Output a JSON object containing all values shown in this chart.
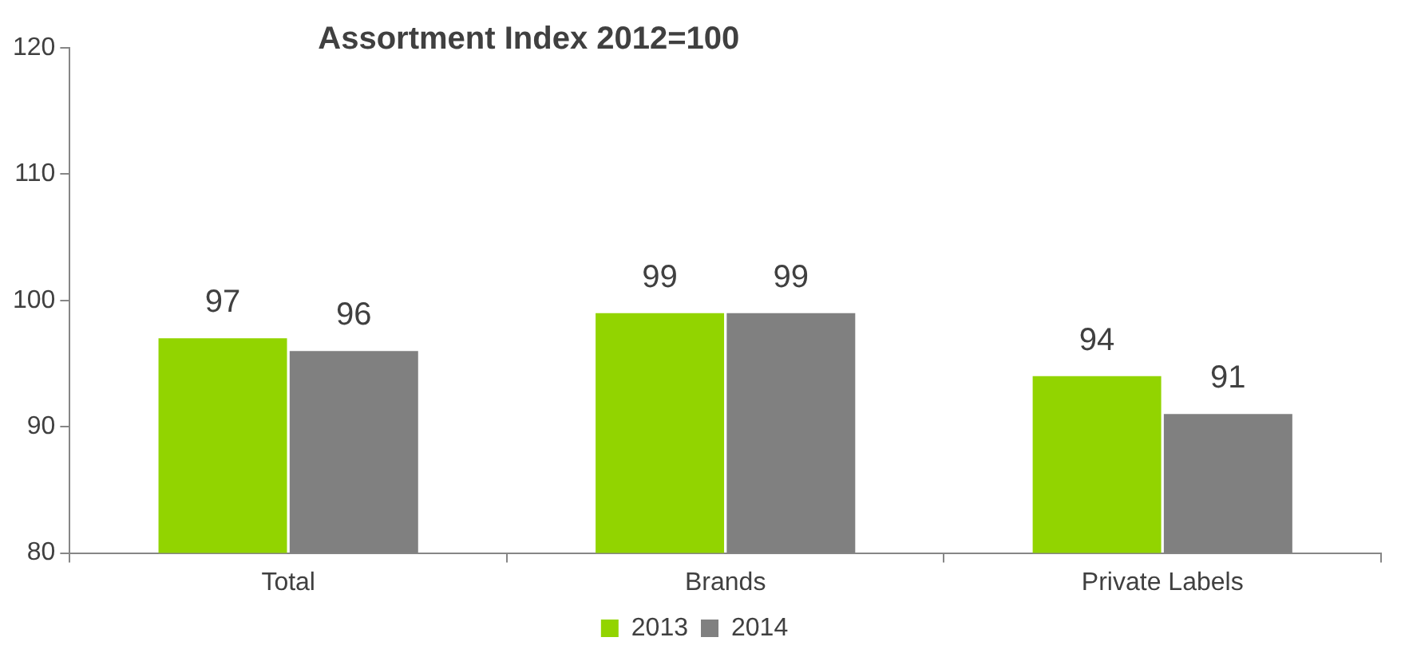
{
  "chart_data": {
    "type": "bar",
    "title": "Assortment Index 2012=100",
    "categories": [
      "Total",
      "Brands",
      "Private Labels"
    ],
    "series": [
      {
        "name": "2013",
        "color": "#92d400",
        "values": [
          97,
          99,
          94
        ]
      },
      {
        "name": "2014",
        "color": "#808080",
        "values": [
          96,
          99,
          91
        ]
      }
    ],
    "ylim": [
      80,
      120
    ],
    "yticks": [
      80,
      90,
      100,
      110,
      120
    ],
    "grid": false,
    "legend": "bottom",
    "data_labels": true
  }
}
